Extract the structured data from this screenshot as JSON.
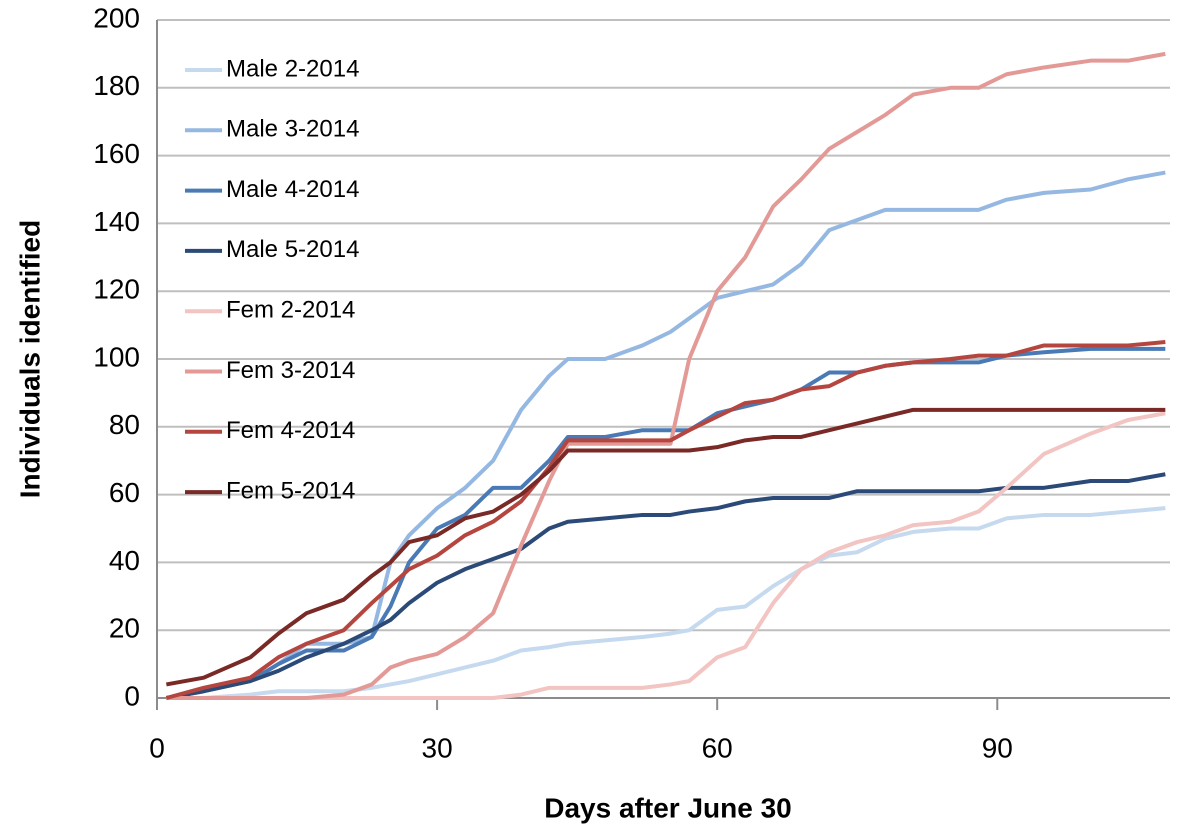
{
  "chart_data": {
    "type": "line",
    "xlabel": "Days after June 30",
    "ylabel": "Individuals identified",
    "x": [
      1,
      5,
      10,
      13,
      16,
      20,
      23,
      25,
      27,
      30,
      33,
      36,
      39,
      42,
      44,
      48,
      52,
      55,
      57,
      60,
      63,
      66,
      69,
      72,
      75,
      78,
      81,
      85,
      88,
      91,
      95,
      100,
      104,
      108
    ],
    "series": [
      {
        "name": "Male 2-2014",
        "color": "#c5d9ef",
        "values": [
          0,
          0,
          1,
          2,
          2,
          2,
          3,
          4,
          5,
          7,
          9,
          11,
          14,
          15,
          16,
          17,
          18,
          19,
          20,
          26,
          27,
          33,
          38,
          42,
          43,
          47,
          49,
          50,
          50,
          53,
          54,
          54,
          55,
          56
        ]
      },
      {
        "name": "Male 3-2014",
        "color": "#95b8e2",
        "values": [
          0,
          2,
          5,
          10,
          16,
          16,
          18,
          40,
          48,
          56,
          62,
          70,
          85,
          95,
          100,
          100,
          104,
          108,
          112,
          118,
          120,
          122,
          128,
          138,
          141,
          144,
          144,
          144,
          144,
          147,
          149,
          150,
          153,
          155
        ]
      },
      {
        "name": "Male 4-2014",
        "color": "#4a7ab5",
        "values": [
          0,
          2,
          5,
          10,
          14,
          14,
          18,
          27,
          40,
          50,
          54,
          62,
          62,
          70,
          77,
          77,
          79,
          79,
          79,
          84,
          86,
          88,
          91,
          96,
          96,
          98,
          99,
          99,
          99,
          101,
          102,
          103,
          103,
          103
        ]
      },
      {
        "name": "Male 5-2014",
        "color": "#2c4a77",
        "values": [
          0,
          2,
          5,
          8,
          12,
          16,
          20,
          23,
          28,
          34,
          38,
          41,
          44,
          50,
          52,
          53,
          54,
          54,
          55,
          56,
          58,
          59,
          59,
          59,
          61,
          61,
          61,
          61,
          61,
          62,
          62,
          64,
          64,
          66
        ]
      },
      {
        "name": "Fem 2-2014",
        "color": "#f2c4c2",
        "values": [
          0,
          0,
          0,
          0,
          0,
          0,
          0,
          0,
          0,
          0,
          0,
          0,
          1,
          3,
          3,
          3,
          3,
          4,
          5,
          12,
          15,
          28,
          38,
          43,
          46,
          48,
          51,
          52,
          55,
          62,
          72,
          78,
          82,
          84
        ]
      },
      {
        "name": "Fem 3-2014",
        "color": "#e39a96",
        "values": [
          0,
          0,
          0,
          0,
          0,
          1,
          4,
          9,
          11,
          13,
          18,
          25,
          45,
          64,
          75,
          75,
          75,
          75,
          100,
          120,
          130,
          145,
          153,
          162,
          167,
          172,
          178,
          180,
          180,
          184,
          186,
          188,
          188,
          190
        ]
      },
      {
        "name": "Fem 4-2014",
        "color": "#b5463f",
        "values": [
          0,
          3,
          6,
          12,
          16,
          20,
          28,
          33,
          38,
          42,
          48,
          52,
          58,
          68,
          76,
          76,
          76,
          76,
          79,
          83,
          87,
          88,
          91,
          92,
          96,
          98,
          99,
          100,
          101,
          101,
          104,
          104,
          104,
          105
        ]
      },
      {
        "name": "Fem 5-2014",
        "color": "#7a2a26",
        "values": [
          4,
          6,
          12,
          19,
          25,
          29,
          36,
          40,
          46,
          48,
          53,
          55,
          60,
          67,
          73,
          73,
          73,
          73,
          73,
          74,
          76,
          77,
          77,
          79,
          81,
          83,
          85,
          85,
          85,
          85,
          85,
          85,
          85,
          85
        ]
      }
    ],
    "xlim": [
      0,
      108.5
    ],
    "xticks": [
      0,
      30,
      60,
      90
    ],
    "ylim": [
      0,
      200
    ],
    "yticks": [
      0,
      20,
      40,
      60,
      80,
      100,
      120,
      140,
      160,
      180,
      200
    ],
    "grid": true,
    "legend": "upper left"
  }
}
